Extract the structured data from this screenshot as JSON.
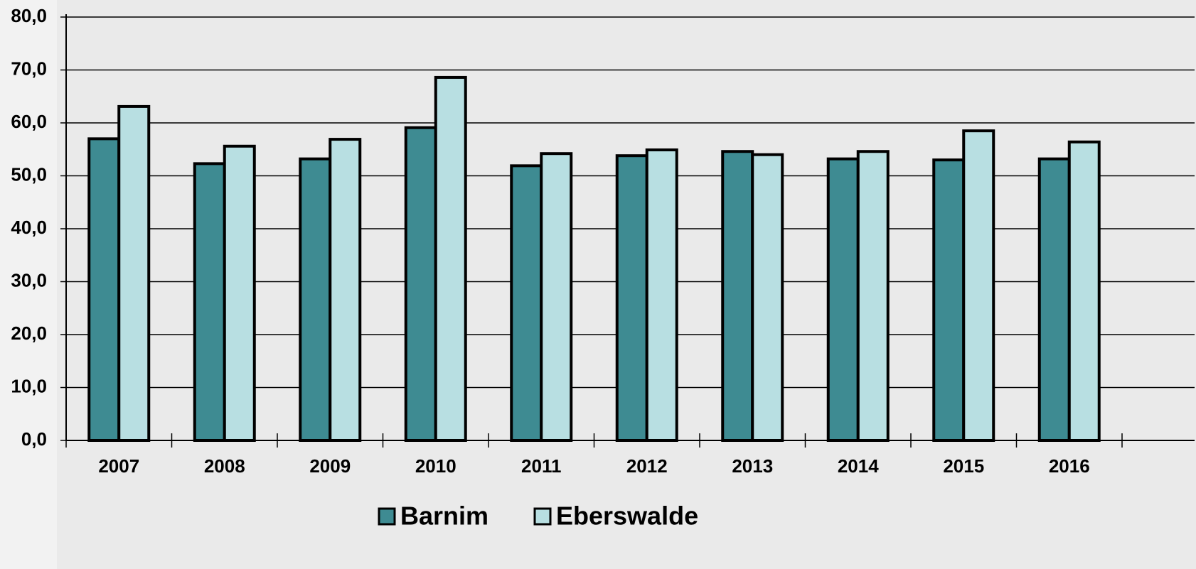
{
  "chart_data": {
    "type": "bar",
    "categories": [
      "2007",
      "2008",
      "2009",
      "2010",
      "2011",
      "2012",
      "2013",
      "2014",
      "2015",
      "2016"
    ],
    "series": [
      {
        "name": "Barnim",
        "color": "#3e8b92",
        "values": [
          57.0,
          52.3,
          53.2,
          59.1,
          51.9,
          53.8,
          54.6,
          53.2,
          53.0,
          53.2
        ]
      },
      {
        "name": "Eberswalde",
        "color": "#b8dfe2",
        "values": [
          63.1,
          55.6,
          56.9,
          68.6,
          54.2,
          54.9,
          54.0,
          54.6,
          58.5,
          56.4
        ]
      }
    ],
    "ylim": [
      0,
      80
    ],
    "yticks": [
      {
        "value": 0,
        "label": "0,0"
      },
      {
        "value": 10,
        "label": "10,0"
      },
      {
        "value": 20,
        "label": "20,0"
      },
      {
        "value": 30,
        "label": "30,0"
      },
      {
        "value": 40,
        "label": "40,0"
      },
      {
        "value": 50,
        "label": "50,0"
      },
      {
        "value": 60,
        "label": "60,0"
      },
      {
        "value": 70,
        "label": "70,0"
      },
      {
        "value": 80,
        "label": "80,0"
      }
    ],
    "grid": true,
    "legend": "bottom"
  }
}
